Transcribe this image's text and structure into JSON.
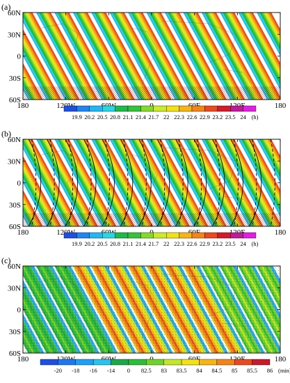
{
  "figure": {
    "panels": [
      "a",
      "b",
      "c"
    ]
  },
  "chart_data": [
    {
      "type": "heatmap",
      "panel_label": "(a)",
      "map": "global latitude-longitude",
      "x_ticks": [
        "180",
        "120W",
        "60W",
        "0",
        "60E",
        "120E",
        "180"
      ],
      "y_ticks": [
        "60N",
        "30N",
        "0",
        "30S",
        "60S"
      ],
      "xlim": [
        -180,
        180
      ],
      "ylim": [
        -60,
        60
      ],
      "stripe_count": 14,
      "colorbar": {
        "levels": [
          "19.9",
          "20.2",
          "20.5",
          "20.8",
          "21.1",
          "21.4",
          "21.7",
          "22",
          "22.3",
          "22.6",
          "22.9",
          "23.2",
          "23.5",
          "24"
        ],
        "unit": "(h)",
        "colors": [
          "#1e4fe0",
          "#1f86f0",
          "#22b6f2",
          "#29d6e6",
          "#1fb84a",
          "#33c33a",
          "#86d82a",
          "#ccea2a",
          "#f2e018",
          "#f6b417",
          "#f3841a",
          "#ea4a1e",
          "#d21c2c",
          "#c01a98",
          "#e020e0"
        ]
      }
    },
    {
      "type": "heatmap",
      "panel_label": "(b)",
      "map": "global latitude-longitude",
      "x_ticks": [
        "180",
        "120W",
        "60W",
        "0",
        "60E",
        "120E",
        "180"
      ],
      "y_ticks": [
        "60N",
        "30N",
        "0",
        "30S",
        "60S"
      ],
      "xlim": [
        -180,
        180
      ],
      "ylim": [
        -60,
        60
      ],
      "stripe_count": 14,
      "overlay": "black solid and dashed contour lines",
      "colorbar": {
        "levels": [
          "19.9",
          "20.2",
          "20.5",
          "20.8",
          "21.1",
          "21.4",
          "21.7",
          "22",
          "22.3",
          "22.6",
          "22.9",
          "23.2",
          "23.5",
          "24"
        ],
        "unit": "(h)",
        "colors": [
          "#1e4fe0",
          "#1f86f0",
          "#22b6f2",
          "#29d6e6",
          "#1fb84a",
          "#33c33a",
          "#86d82a",
          "#ccea2a",
          "#f2e018",
          "#f6b417",
          "#f3841a",
          "#ea4a1e",
          "#d21c2c",
          "#c01a98",
          "#e020e0"
        ]
      }
    },
    {
      "type": "heatmap",
      "panel_label": "(c)",
      "map": "global latitude-longitude",
      "x_ticks": [
        "180",
        "120W",
        "60W",
        "0",
        "60E",
        "120E",
        "180"
      ],
      "y_ticks": [
        "60N",
        "30N",
        "0",
        "30S",
        "60S"
      ],
      "xlim": [
        -180,
        180
      ],
      "ylim": [
        -60,
        60
      ],
      "stripe_count": 14,
      "colorbar": {
        "levels": [
          "-20",
          "-18",
          "-16",
          "-14",
          "0",
          "82.5",
          "83",
          "83.5",
          "84",
          "84.5",
          "85",
          "85.5",
          "86"
        ],
        "unit": "(min)",
        "colors": [
          "#1e4fe0",
          "#1f78f0",
          "#1fa0f4",
          "#29c4ee",
          "#1aa84a",
          "#2ebc3a",
          "#72d22c",
          "#c2e62a",
          "#f2e018",
          "#f6b417",
          "#f3841a",
          "#ea4a1e",
          "#c81a2a"
        ]
      }
    }
  ]
}
